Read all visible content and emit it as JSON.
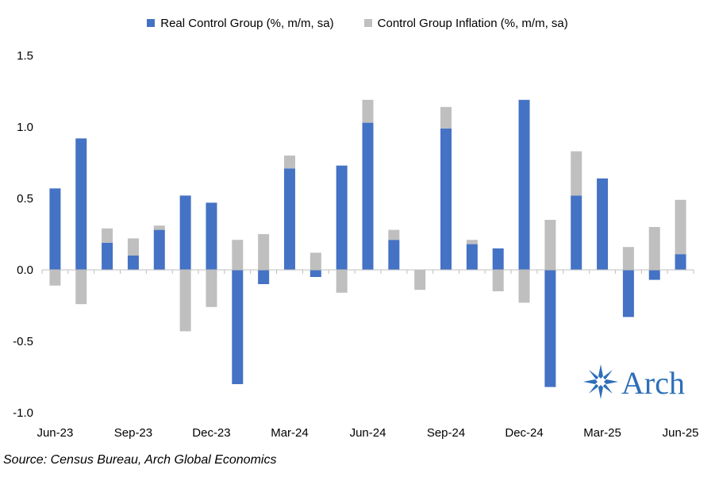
{
  "chart_data": {
    "type": "bar",
    "stacked": true,
    "categories": [
      "Jun-23",
      "Jul-23",
      "Aug-23",
      "Sep-23",
      "Oct-23",
      "Nov-23",
      "Dec-23",
      "Jan-24",
      "Feb-24",
      "Mar-24",
      "Apr-24",
      "May-24",
      "Jun-24",
      "Jul-24",
      "Aug-24",
      "Sep-24",
      "Oct-24",
      "Nov-24",
      "Dec-24",
      "Jan-25",
      "Feb-25",
      "Mar-25",
      "Apr-25",
      "May-25",
      "Jun-25"
    ],
    "x_tick_labels": [
      "Jun-23",
      "Sep-23",
      "Dec-23",
      "Mar-24",
      "Jun-24",
      "Sep-24",
      "Dec-24",
      "Mar-25",
      "Jun-25"
    ],
    "series": [
      {
        "name": "Real Control Group (%, m/m, sa)",
        "color": "#4472c4",
        "values": [
          0.57,
          0.92,
          0.19,
          0.1,
          0.28,
          0.52,
          0.47,
          -0.8,
          -0.1,
          0.71,
          -0.05,
          0.73,
          1.03,
          0.21,
          0.0,
          0.99,
          0.18,
          0.15,
          1.19,
          -0.82,
          0.52,
          0.64,
          -0.33,
          -0.07,
          0.11
        ]
      },
      {
        "name": "Control Group Inflation (%, m/m, sa)",
        "color": "#bfbfbf",
        "values": [
          -0.11,
          -0.24,
          0.1,
          0.12,
          0.03,
          -0.43,
          -0.26,
          0.21,
          0.25,
          0.09,
          0.12,
          -0.16,
          0.16,
          0.07,
          -0.14,
          0.15,
          0.03,
          -0.15,
          -0.23,
          0.35,
          0.31,
          0.0,
          0.16,
          0.3,
          0.38
        ]
      }
    ],
    "ylim": [
      -1.0,
      1.5
    ],
    "y_ticks": [
      "1.5",
      "1.0",
      "0.5",
      "0.0",
      "-0.5",
      "-1.0"
    ],
    "legend_position": "top-center",
    "grid": false
  },
  "source_text": "Source: Census Bureau, Arch Global Economics",
  "logo": {
    "text": "Arch",
    "color": "#2d6fb8"
  }
}
